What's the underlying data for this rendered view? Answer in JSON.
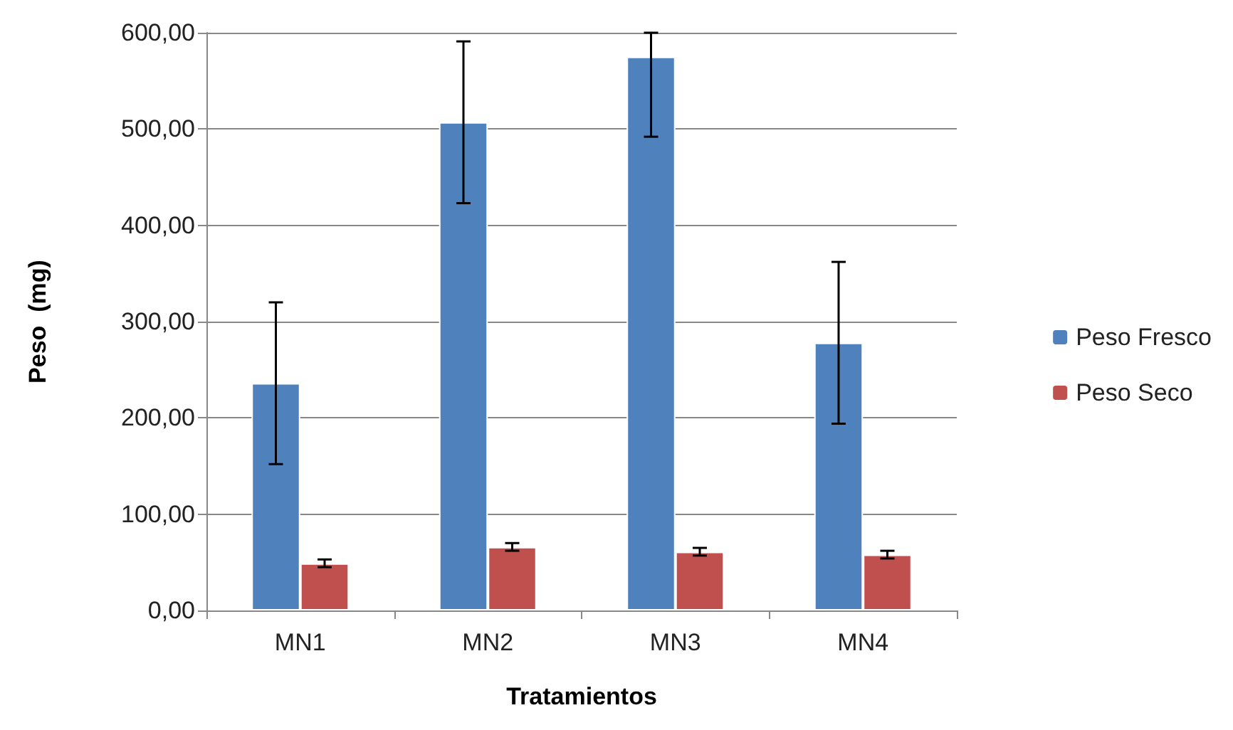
{
  "chart_data": {
    "type": "bar",
    "xlabel": "Tratamientos",
    "ylabel": "Peso  (mg)",
    "categories": [
      "MN1",
      "MN2",
      "MN3",
      "MN4"
    ],
    "series": [
      {
        "name": "Peso Fresco",
        "color": "#4f81bd",
        "values": [
          236,
          507,
          575,
          278
        ],
        "errors": [
          84,
          84,
          [
            492,
            600
          ],
          84
        ]
      },
      {
        "name": "Peso Seco",
        "color": "#c0504d",
        "values": [
          49,
          66,
          61,
          58
        ],
        "errors": [
          4,
          4,
          4,
          4
        ]
      }
    ],
    "ylim": [
      0,
      600
    ],
    "yticks": [
      {
        "value": 0,
        "label": "0,00"
      },
      {
        "value": 100,
        "label": "100,00"
      },
      {
        "value": 200,
        "label": "200,00"
      },
      {
        "value": 300,
        "label": "300,00"
      },
      {
        "value": 400,
        "label": "400,00"
      },
      {
        "value": 500,
        "label": "500,00"
      },
      {
        "value": 600,
        "label": "600,00"
      }
    ],
    "grid": "y",
    "legend": "right"
  }
}
